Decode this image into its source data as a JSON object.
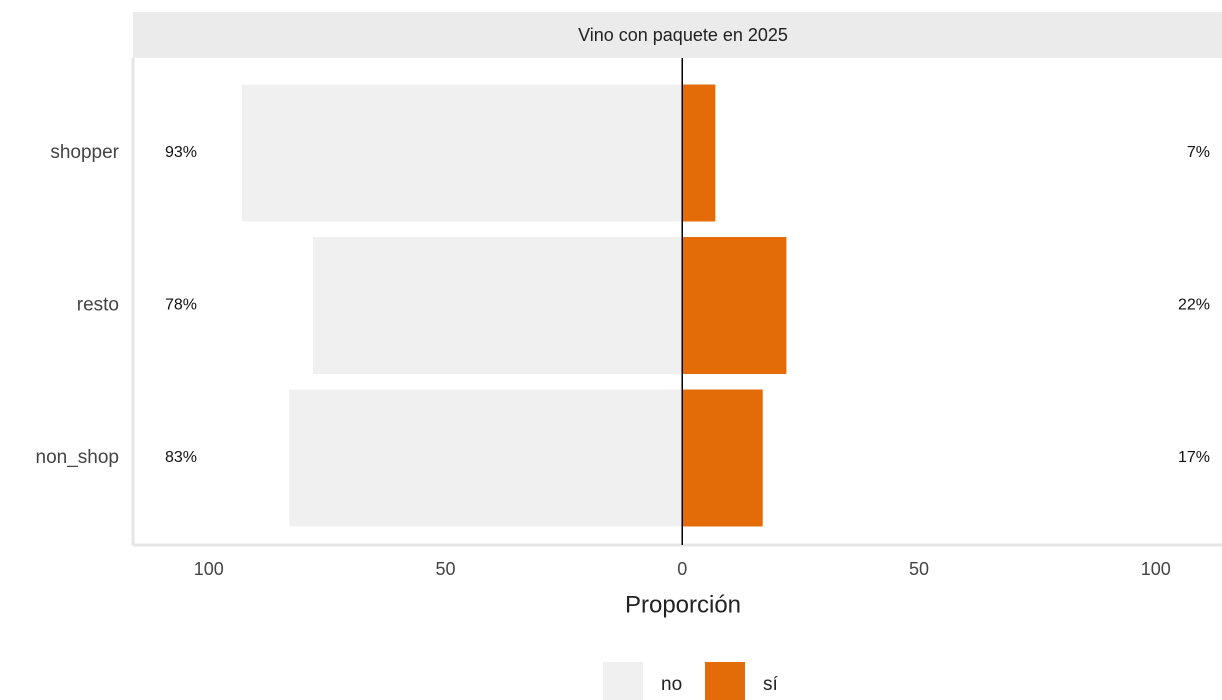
{
  "chart_data": {
    "type": "bar",
    "title": "Vino con paquete en 2025",
    "xlabel": "Proporción",
    "categories": [
      "shopper",
      "resto",
      "non_shop"
    ],
    "series": [
      {
        "name": "no",
        "color": "#f0f0f0",
        "values": [
          -93,
          -78,
          -83
        ],
        "value_labels": [
          "93%",
          "78%",
          "83%"
        ]
      },
      {
        "name": "sí",
        "color": "#e36c09",
        "values": [
          7,
          22,
          17
        ],
        "value_labels": [
          "7%",
          "22%",
          "17%"
        ]
      }
    ],
    "xlim": [
      -116,
      114
    ],
    "xticks": [
      {
        "value": -100,
        "label": "100"
      },
      {
        "value": -50,
        "label": "50"
      },
      0,
      50,
      100
    ],
    "legend": "bottom"
  }
}
